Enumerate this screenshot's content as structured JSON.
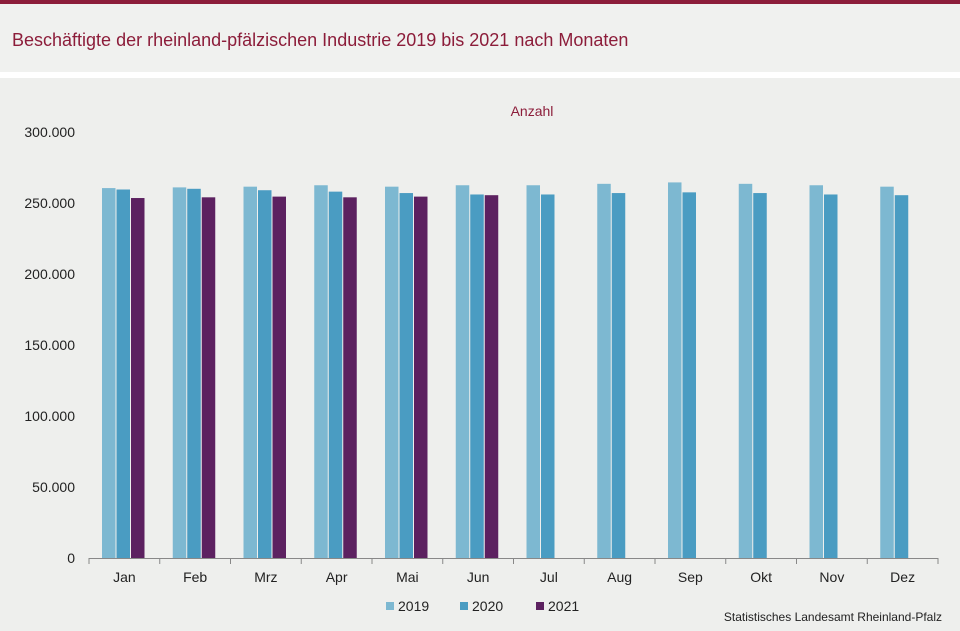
{
  "header": {
    "title": "Beschäftigte der rheinland-pfälzischen Industrie 2019 bis 2021 nach Monaten"
  },
  "source": "Statistisches Landesamt Rheinland-Pfalz",
  "colors": {
    "accent": "#8c1d3a",
    "s2019": "#7db8d1",
    "s2020": "#4a9cc2",
    "s2021": "#5c2160"
  },
  "chart_data": {
    "type": "bar",
    "ylabel": "Anzahl",
    "ylim": [
      0,
      300000
    ],
    "yticks": [
      0,
      50000,
      100000,
      150000,
      200000,
      250000,
      300000
    ],
    "ytick_labels": [
      "0",
      "50.000",
      "100.000",
      "150.000",
      "200.000",
      "250.000",
      "300.000"
    ],
    "categories": [
      "Jan",
      "Feb",
      "Mrz",
      "Apr",
      "Mai",
      "Jun",
      "Jul",
      "Aug",
      "Sep",
      "Okt",
      "Nov",
      "Dez"
    ],
    "series": [
      {
        "name": "2019",
        "values": [
          260500,
          261000,
          261500,
          262500,
          261500,
          262500,
          262500,
          263500,
          264500,
          263500,
          262500,
          261500
        ]
      },
      {
        "name": "2020",
        "values": [
          259500,
          260000,
          259000,
          258000,
          257000,
          256000,
          256000,
          257000,
          257500,
          257000,
          256000,
          255500
        ]
      },
      {
        "name": "2021",
        "values": [
          253500,
          254000,
          254500,
          254000,
          254500,
          255500,
          null,
          null,
          null,
          null,
          null,
          null
        ]
      }
    ],
    "legend": "bottom-center",
    "grid": false
  }
}
